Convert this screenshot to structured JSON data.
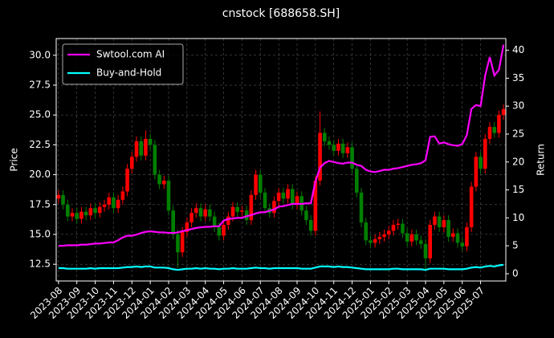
{
  "chart_data": {
    "type": "candlestick",
    "title": "cnstock [688658.SH]",
    "ylabel": "Price",
    "y2label": "Return",
    "categories": [
      "2023-08",
      null,
      null,
      null,
      "2023-09",
      null,
      null,
      null,
      "2023-10",
      null,
      null,
      null,
      "2023-11",
      null,
      null,
      null,
      "2023-12",
      null,
      null,
      null,
      "2024-01",
      null,
      null,
      null,
      "2024-02",
      null,
      null,
      null,
      "2024-03",
      null,
      null,
      null,
      "2024-04",
      null,
      null,
      null,
      "2024-05",
      null,
      null,
      null,
      "2024-06",
      null,
      null,
      null,
      "2024-07",
      null,
      null,
      null,
      "2024-08",
      null,
      null,
      null,
      "2024-09",
      null,
      null,
      null,
      "2024-10",
      null,
      null,
      null,
      "2024-11",
      null,
      null,
      null,
      "2024-12",
      null,
      null,
      null,
      "2025-01",
      null,
      null,
      null,
      "2025-02",
      null,
      null,
      null,
      "2025-03",
      null,
      null,
      null,
      "2025-04",
      null,
      null,
      null,
      "2025-05",
      null,
      null,
      null,
      "2025-06",
      null,
      null,
      null,
      "2025-07",
      null,
      null,
      null,
      null,
      null
    ],
    "candles": {
      "up_color": "#ff0000",
      "down_color": "#008000",
      "open": [
        18.0,
        18.3,
        17.5,
        16.5,
        16.8,
        16.3,
        16.9,
        16.6,
        17.2,
        16.8,
        17.3,
        17.5,
        18.1,
        17.2,
        17.9,
        18.6,
        20.5,
        21.5,
        22.8,
        21.6,
        23.0,
        22.5,
        20.0,
        19.2,
        19.5,
        17.0,
        15.0,
        13.5,
        15.2,
        16.0,
        16.8,
        17.2,
        16.5,
        17.1,
        16.5,
        15.6,
        14.9,
        15.8,
        16.5,
        17.3,
        16.9,
        17.0,
        16.2,
        18.3,
        20.0,
        18.5,
        17.2,
        16.8,
        17.8,
        18.5,
        18.0,
        18.8,
        17.5,
        18.2,
        17.0,
        16.2,
        15.3,
        19.5,
        23.5,
        22.8,
        22.5,
        22.0,
        22.6,
        21.8,
        22.3,
        20.5,
        18.5,
        16.0,
        14.5,
        14.3,
        14.6,
        14.8,
        15.0,
        15.3,
        15.8,
        15.9,
        15.1,
        14.4,
        15.0,
        14.5,
        14.2,
        13.0,
        15.8,
        16.5,
        15.6,
        16.2,
        14.8,
        15.1,
        14.3,
        14.0,
        15.6,
        19.0,
        21.5,
        20.5,
        23.0,
        24.0,
        23.5,
        25.0
      ],
      "high": [
        18.7,
        18.7,
        17.9,
        17.2,
        17.2,
        17.3,
        17.3,
        17.6,
        17.6,
        17.7,
        17.9,
        18.5,
        18.5,
        18.3,
        19.0,
        20.9,
        21.9,
        23.2,
        23.2,
        23.7,
        23.4,
        22.9,
        20.4,
        19.9,
        19.9,
        17.4,
        15.4,
        15.6,
        16.4,
        17.2,
        17.6,
        17.6,
        17.5,
        17.5,
        16.9,
        16.0,
        16.2,
        16.9,
        17.7,
        17.7,
        17.4,
        17.4,
        18.7,
        20.4,
        20.4,
        18.9,
        17.6,
        18.2,
        18.9,
        18.9,
        19.2,
        19.2,
        18.6,
        18.6,
        17.4,
        16.6,
        19.9,
        25.3,
        23.9,
        23.2,
        22.9,
        23.0,
        23.0,
        22.7,
        22.7,
        20.9,
        18.9,
        16.4,
        14.9,
        15.0,
        15.2,
        15.4,
        15.7,
        16.2,
        16.3,
        16.3,
        15.5,
        15.4,
        15.4,
        14.9,
        14.6,
        16.2,
        16.9,
        16.9,
        16.6,
        16.6,
        15.5,
        15.5,
        14.7,
        16.0,
        19.4,
        21.9,
        21.9,
        23.4,
        24.4,
        24.4,
        25.4,
        25.9
      ],
      "low": [
        17.6,
        17.1,
        16.1,
        16.1,
        15.9,
        15.9,
        16.2,
        16.2,
        16.4,
        16.4,
        16.9,
        17.1,
        16.8,
        16.8,
        17.5,
        18.2,
        20.1,
        21.1,
        21.2,
        21.2,
        22.1,
        19.6,
        18.8,
        18.8,
        16.6,
        14.6,
        12.2,
        13.1,
        14.8,
        15.6,
        16.4,
        16.1,
        16.1,
        16.1,
        15.2,
        14.5,
        14.5,
        15.4,
        16.1,
        16.5,
        16.5,
        15.8,
        15.8,
        17.9,
        18.1,
        16.8,
        16.4,
        16.4,
        17.4,
        17.6,
        17.6,
        17.1,
        17.1,
        16.6,
        15.8,
        14.9,
        14.9,
        19.1,
        22.4,
        22.1,
        21.6,
        21.6,
        21.4,
        21.4,
        20.1,
        18.1,
        15.6,
        14.1,
        13.9,
        13.9,
        14.2,
        14.4,
        14.6,
        14.9,
        15.4,
        14.7,
        14.0,
        14.0,
        14.1,
        13.8,
        12.1,
        12.6,
        15.4,
        15.2,
        15.2,
        14.4,
        14.4,
        13.9,
        13.6,
        13.6,
        15.2,
        18.6,
        20.1,
        20.1,
        22.6,
        23.1,
        23.1,
        24.6
      ],
      "close": [
        18.3,
        17.5,
        16.5,
        16.8,
        16.3,
        16.9,
        16.6,
        17.2,
        16.8,
        17.3,
        17.5,
        18.1,
        17.2,
        17.9,
        18.6,
        20.5,
        21.5,
        22.8,
        21.6,
        23.0,
        22.5,
        20.0,
        19.2,
        19.5,
        17.0,
        15.0,
        13.5,
        15.2,
        16.0,
        16.8,
        17.2,
        16.5,
        17.1,
        16.5,
        15.6,
        14.9,
        15.8,
        16.5,
        17.3,
        16.9,
        17.0,
        16.2,
        18.3,
        20.0,
        18.5,
        17.2,
        16.8,
        17.8,
        18.5,
        18.0,
        18.8,
        17.5,
        18.2,
        17.0,
        16.2,
        15.3,
        19.5,
        23.5,
        22.8,
        22.5,
        22.0,
        22.6,
        21.8,
        22.3,
        20.5,
        18.5,
        16.0,
        14.5,
        14.3,
        14.6,
        14.8,
        15.0,
        15.3,
        15.8,
        15.9,
        15.1,
        14.4,
        15.0,
        14.5,
        14.2,
        13.0,
        15.8,
        16.5,
        15.6,
        16.2,
        14.8,
        15.1,
        14.3,
        14.0,
        15.6,
        19.0,
        21.5,
        20.5,
        23.0,
        24.0,
        23.5,
        25.0,
        25.5
      ]
    },
    "series": [
      {
        "name": "Swtool.com AI",
        "color": "#ff00ff",
        "axis": "y2",
        "values": [
          5.0,
          5.0,
          5.1,
          5.1,
          5.1,
          5.2,
          5.2,
          5.3,
          5.4,
          5.4,
          5.5,
          5.6,
          5.6,
          6.0,
          6.5,
          6.8,
          6.8,
          7.0,
          7.3,
          7.5,
          7.6,
          7.5,
          7.4,
          7.4,
          7.3,
          7.3,
          7.4,
          7.6,
          7.8,
          8.0,
          8.2,
          8.3,
          8.4,
          8.4,
          8.5,
          8.5,
          9.5,
          9.8,
          9.9,
          10.0,
          10.0,
          10.3,
          10.5,
          10.8,
          11.0,
          11.0,
          11.3,
          11.5,
          12.0,
          12.1,
          12.3,
          12.5,
          12.5,
          12.5,
          12.6,
          12.6,
          16.5,
          19.0,
          19.8,
          20.2,
          20.0,
          19.8,
          19.7,
          19.9,
          19.9,
          19.5,
          19.3,
          18.6,
          18.3,
          18.2,
          18.4,
          18.6,
          18.6,
          18.8,
          18.9,
          19.1,
          19.3,
          19.5,
          19.6,
          19.8,
          20.3,
          24.5,
          24.6,
          23.3,
          23.5,
          23.2,
          23.0,
          22.9,
          23.2,
          24.8,
          29.5,
          30.2,
          30.0,
          35.5,
          38.8,
          35.5,
          36.5,
          41.0
        ]
      },
      {
        "name": "Buy-and-Hold",
        "color": "#00ffff",
        "axis": "y2",
        "values": [
          1.0,
          1.0,
          0.9,
          0.9,
          0.9,
          0.9,
          0.9,
          1.0,
          0.9,
          1.0,
          1.0,
          1.0,
          1.0,
          1.0,
          1.1,
          1.2,
          1.2,
          1.3,
          1.2,
          1.3,
          1.3,
          1.1,
          1.1,
          1.1,
          1.0,
          0.8,
          0.7,
          0.8,
          0.9,
          0.9,
          1.0,
          0.9,
          1.0,
          0.9,
          0.9,
          0.8,
          0.9,
          0.9,
          1.0,
          0.9,
          0.9,
          0.9,
          1.0,
          1.1,
          1.0,
          1.0,
          0.9,
          1.0,
          1.0,
          1.0,
          1.0,
          1.0,
          1.0,
          0.9,
          0.9,
          0.9,
          1.1,
          1.3,
          1.3,
          1.3,
          1.2,
          1.3,
          1.2,
          1.2,
          1.1,
          1.0,
          0.9,
          0.8,
          0.8,
          0.8,
          0.8,
          0.8,
          0.8,
          0.9,
          0.9,
          0.8,
          0.8,
          0.8,
          0.8,
          0.8,
          0.7,
          0.9,
          0.9,
          0.9,
          0.9,
          0.8,
          0.8,
          0.8,
          0.8,
          0.9,
          1.1,
          1.2,
          1.1,
          1.3,
          1.4,
          1.3,
          1.5,
          1.6
        ]
      }
    ],
    "ylim": [
      11.1,
      31.4
    ],
    "yticks": [
      12.5,
      {
        "value": 15,
        "label": "15.0"
      },
      17.5,
      {
        "value": 20,
        "label": "20.0"
      },
      22.5,
      {
        "value": 25,
        "label": "25.0"
      },
      27.5,
      {
        "value": 30,
        "label": "30.0"
      }
    ],
    "y2lim": [
      -1.3,
      42.1
    ],
    "y2ticks": [
      0,
      5,
      10,
      15,
      20,
      25,
      30,
      35,
      40
    ],
    "grid": true,
    "legend": "upper left"
  }
}
